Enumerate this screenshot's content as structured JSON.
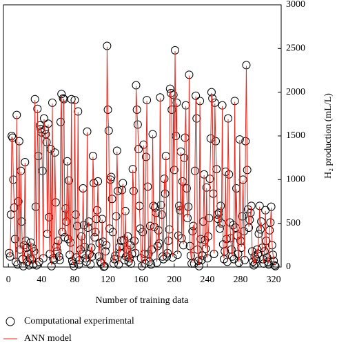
{
  "chart_data": {
    "type": "scatter-line",
    "x_label": "Number of training data",
    "y_label": "H₂ production (mL/L)",
    "xlim": [
      -6,
      329
    ],
    "xticks": [
      0,
      40,
      80,
      120,
      160,
      200,
      240,
      280,
      320
    ],
    "ylim": [
      0,
      3000
    ],
    "yticks": [
      0,
      500,
      1000,
      1500,
      2000,
      2500,
      3000
    ],
    "y_axis_side": "right",
    "x": [
      1,
      2,
      3,
      4,
      5,
      6,
      7,
      8,
      9,
      10,
      11,
      12,
      13,
      14,
      15,
      16,
      17,
      18,
      19,
      20,
      21,
      22,
      23,
      24,
      25,
      26,
      27,
      28,
      29,
      30,
      31,
      32,
      33,
      34,
      35,
      36,
      37,
      38,
      39,
      40,
      41,
      42,
      43,
      44,
      45,
      46,
      47,
      48,
      49,
      50,
      51,
      52,
      53,
      54,
      55,
      56,
      57,
      58,
      59,
      60,
      61,
      62,
      63,
      64,
      65,
      66,
      67,
      68,
      69,
      70,
      71,
      72,
      73,
      74,
      75,
      76,
      77,
      78,
      79,
      80,
      81,
      82,
      83,
      84,
      85,
      86,
      87,
      88,
      89,
      90,
      91,
      92,
      93,
      94,
      95,
      96,
      97,
      98,
      99,
      100,
      101,
      102,
      103,
      104,
      105,
      106,
      107,
      108,
      109,
      110,
      111,
      112,
      113,
      114,
      115,
      116,
      117,
      118,
      119,
      120,
      121,
      122,
      123,
      124,
      125,
      126,
      127,
      128,
      129,
      130,
      131,
      132,
      133,
      134,
      135,
      136,
      137,
      138,
      139,
      140,
      141,
      142,
      143,
      144,
      145,
      146,
      147,
      148,
      149,
      150,
      151,
      152,
      153,
      154,
      155,
      156,
      157,
      158,
      159,
      160,
      161,
      162,
      163,
      164,
      165,
      166,
      167,
      168,
      169,
      170,
      171,
      172,
      173,
      174,
      175,
      176,
      177,
      178,
      179,
      180,
      181,
      182,
      183,
      184,
      185,
      186,
      187,
      188,
      189,
      190,
      191,
      192,
      193,
      194,
      195,
      196,
      197,
      198,
      199,
      200,
      201,
      202,
      203,
      204,
      205,
      206,
      207,
      208,
      209,
      210,
      211,
      212,
      213,
      214,
      215,
      216,
      217,
      218,
      219,
      220,
      221,
      222,
      223,
      224,
      225,
      226,
      227,
      228,
      229,
      230,
      231,
      232,
      233,
      234,
      235,
      236,
      237,
      238,
      239,
      240,
      241,
      242,
      243,
      244,
      245,
      246,
      247,
      248,
      249,
      250,
      251,
      252,
      253,
      254,
      255,
      256,
      257,
      258,
      259,
      260,
      261,
      262,
      263,
      264,
      265,
      266,
      267,
      268,
      269,
      270,
      271,
      272,
      273,
      274,
      275,
      276,
      277,
      278,
      279,
      280,
      281,
      282,
      283,
      284,
      285,
      286,
      287,
      288,
      289,
      290,
      291,
      292,
      293,
      294,
      295,
      296,
      297,
      298,
      299,
      300,
      301,
      302,
      303,
      304,
      305,
      306,
      307,
      308,
      309,
      310,
      311,
      312,
      313,
      314,
      315,
      316,
      317,
      318,
      319,
      320,
      321,
      322
    ],
    "series": [
      {
        "name": "Computational experimental",
        "mode": "markers",
        "color": "#000000",
        "values": [
          160,
          120,
          600,
          1500,
          1480,
          1000,
          680,
          320,
          60,
          1740,
          30,
          750,
          1440,
          200,
          1100,
          520,
          90,
          10,
          250,
          1200,
          300,
          220,
          60,
          150,
          20,
          100,
          280,
          90,
          220,
          30,
          180,
          1920,
          690,
          20,
          1810,
          1270,
          60,
          1620,
          1580,
          1540,
          1100,
          100,
          1700,
          1570,
          1520,
          1430,
          380,
          1640,
          570,
          150,
          1350,
          10,
          1880,
          100,
          80,
          1310,
          740,
          230,
          180,
          300,
          120,
          80,
          1660,
          1980,
          400,
          1930,
          1920,
          340,
          670,
          520,
          1210,
          320,
          990,
          140,
          280,
          1920,
          70,
          40,
          10,
          1910,
          600,
          110,
          470,
          1780,
          30,
          80,
          200,
          350,
          150,
          900,
          480,
          230,
          100,
          60,
          1550,
          450,
          520,
          150,
          30,
          220,
          120,
          1270,
          960,
          340,
          400,
          550,
          650,
          980,
          120,
          270,
          60,
          40,
          550,
          290,
          3,
          10,
          180,
          250,
          2530,
          1800,
          1560,
          440,
          1000,
          1030,
          780,
          400,
          40,
          90,
          130,
          580,
          1330,
          870,
          30,
          230,
          160,
          300,
          880,
          960,
          310,
          80,
          640,
          120,
          200,
          350,
          60,
          100,
          250,
          40,
          150,
          1120,
          870,
          300,
          160,
          2080,
          1800,
          1630,
          1350,
          700,
          440,
          100,
          10,
          400,
          1400,
          150,
          40,
          1260,
          1910,
          920,
          150,
          60,
          470,
          30,
          200,
          1520,
          700,
          460,
          680,
          620,
          50,
          240,
          420,
          270,
          1940,
          710,
          600,
          120,
          90,
          1010,
          840,
          1270,
          120,
          160,
          300,
          430,
          2040,
          1990,
          1800,
          110,
          1970,
          1110,
          2480,
          1500,
          1880,
          140,
          360,
          700,
          650,
          1320,
          330,
          980,
          250,
          1250,
          1480,
          1850,
          900,
          560,
          690,
          2200,
          240,
          130,
          40,
          410,
          470,
          40,
          1100,
          1960,
          1700,
          200,
          70,
          10,
          1900,
          320,
          80,
          130,
          520,
          1060,
          310,
          210,
          910,
          100,
          350,
          560,
          1010,
          1470,
          2000,
          1930,
          840,
          150,
          1880,
          1440,
          1120,
          600,
          550,
          620,
          440,
          700,
          500,
          1850,
          260,
          90,
          180,
          1090,
          320,
          60,
          1700,
          1060,
          510,
          330,
          200,
          120,
          480,
          90,
          1900,
          450,
          900,
          360,
          150,
          50,
          1460,
          300,
          220,
          580,
          1000,
          410,
          80,
          1440,
          2310,
          1110,
          660,
          450,
          540,
          620,
          700,
          180,
          60,
          20,
          120,
          40,
          90,
          200,
          150,
          380,
          700,
          430,
          520,
          220,
          90,
          40,
          180,
          650,
          300,
          110,
          60,
          30,
          420,
          510,
          690,
          250,
          140,
          70,
          20,
          10
        ]
      },
      {
        "name": "ANN model",
        "mode": "lines",
        "color": "#e8261c",
        "values": [
          150,
          130,
          590,
          1490,
          1470,
          1010,
          670,
          330,
          70,
          1730,
          40,
          740,
          1430,
          210,
          1090,
          530,
          100,
          20,
          260,
          1190,
          310,
          230,
          70,
          160,
          30,
          110,
          290,
          100,
          230,
          40,
          190,
          1910,
          680,
          30,
          1800,
          1260,
          70,
          1610,
          1570,
          1530,
          1090,
          110,
          1690,
          1560,
          1510,
          1420,
          390,
          1630,
          580,
          160,
          1340,
          20,
          1870,
          110,
          90,
          1300,
          730,
          240,
          190,
          310,
          130,
          90,
          1650,
          1970,
          410,
          1920,
          1910,
          350,
          660,
          530,
          1200,
          330,
          980,
          150,
          290,
          1910,
          80,
          50,
          20,
          1900,
          590,
          120,
          480,
          1770,
          40,
          90,
          210,
          360,
          160,
          890,
          490,
          240,
          110,
          70,
          1540,
          460,
          510,
          160,
          40,
          230,
          130,
          1260,
          950,
          350,
          410,
          540,
          640,
          970,
          130,
          280,
          70,
          50,
          540,
          300,
          10,
          20,
          190,
          260,
          2520,
          1790,
          1550,
          450,
          990,
          1020,
          770,
          410,
          50,
          100,
          140,
          570,
          1320,
          860,
          40,
          240,
          170,
          310,
          870,
          950,
          320,
          90,
          630,
          130,
          210,
          360,
          70,
          110,
          260,
          50,
          160,
          1110,
          860,
          310,
          170,
          2070,
          1790,
          1620,
          1340,
          690,
          450,
          110,
          20,
          410,
          1390,
          160,
          50,
          1250,
          1900,
          910,
          160,
          70,
          480,
          40,
          210,
          1510,
          690,
          470,
          670,
          610,
          60,
          250,
          430,
          280,
          1930,
          700,
          590,
          130,
          100,
          1000,
          830,
          1260,
          130,
          170,
          310,
          440,
          2030,
          1980,
          1790,
          120,
          1960,
          1100,
          2470,
          1490,
          1870,
          150,
          370,
          690,
          640,
          1310,
          340,
          970,
          260,
          1240,
          1470,
          1840,
          890,
          570,
          680,
          2190,
          250,
          140,
          50,
          420,
          480,
          50,
          1090,
          1950,
          1690,
          210,
          80,
          20,
          1890,
          330,
          90,
          140,
          510,
          1050,
          320,
          220,
          900,
          110,
          360,
          550,
          1000,
          1460,
          1990,
          1920,
          830,
          160,
          1870,
          1430,
          1110,
          590,
          540,
          610,
          450,
          690,
          510,
          1840,
          270,
          100,
          190,
          1080,
          330,
          70,
          1690,
          1050,
          520,
          340,
          210,
          130,
          470,
          100,
          1890,
          460,
          890,
          370,
          160,
          60,
          1450,
          310,
          230,
          570,
          990,
          420,
          90,
          1430,
          2300,
          1100,
          650,
          460,
          530,
          610,
          690,
          190,
          70,
          30,
          130,
          50,
          100,
          210,
          160,
          390,
          690,
          440,
          510,
          230,
          100,
          50,
          190,
          640,
          310,
          120,
          70,
          40,
          430,
          500,
          680,
          260,
          150,
          80,
          30,
          20
        ]
      }
    ]
  }
}
